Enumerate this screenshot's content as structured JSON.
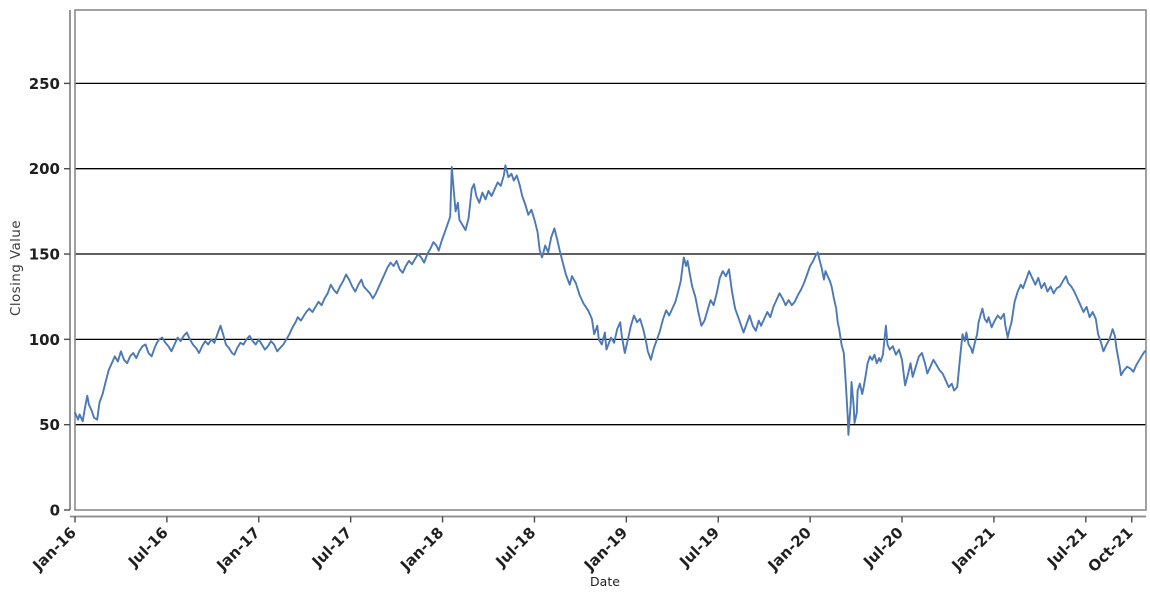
{
  "chart_data": {
    "type": "line",
    "title": "",
    "xlabel": "Date",
    "ylabel": "Closing Value",
    "x_unit": "months since Jan-2016",
    "xlim": [
      0,
      69.93
    ],
    "ylim": [
      0,
      293
    ],
    "grid": "horizontal-only",
    "legend": "none",
    "y_ticks": [
      0,
      50,
      100,
      150,
      200,
      250
    ],
    "x_ticks": [
      {
        "m": 0,
        "label": "Jan-16"
      },
      {
        "m": 6,
        "label": "Jul-16"
      },
      {
        "m": 12,
        "label": "Jan-17"
      },
      {
        "m": 18,
        "label": "Jul-17"
      },
      {
        "m": 24,
        "label": "Jan-18"
      },
      {
        "m": 30,
        "label": "Jul-18"
      },
      {
        "m": 36,
        "label": "Jan-19"
      },
      {
        "m": 42,
        "label": "Jul-19"
      },
      {
        "m": 48,
        "label": "Jan-20"
      },
      {
        "m": 54,
        "label": "Jul-20"
      },
      {
        "m": 60,
        "label": "Jan-21"
      },
      {
        "m": 66,
        "label": "Jul-21"
      },
      {
        "m": 69,
        "label": "Oct-21"
      }
    ],
    "series": [
      {
        "name": "Closing Value",
        "x": [
          0,
          0.2,
          0.3,
          0.5,
          0.65,
          0.8,
          0.9,
          1.1,
          1.25,
          1.45,
          1.6,
          1.8,
          2.0,
          2.2,
          2.4,
          2.6,
          2.8,
          3.0,
          3.2,
          3.4,
          3.6,
          3.8,
          4.0,
          4.2,
          4.4,
          4.6,
          4.8,
          5.0,
          5.2,
          5.35,
          5.5,
          5.7,
          5.9,
          6.1,
          6.3,
          6.5,
          6.7,
          6.9,
          7.1,
          7.3,
          7.5,
          7.7,
          7.9,
          8.1,
          8.3,
          8.5,
          8.7,
          8.9,
          9.1,
          9.3,
          9.5,
          9.7,
          9.85,
          10.05,
          10.25,
          10.4,
          10.6,
          10.8,
          11.0,
          11.2,
          11.4,
          11.6,
          11.8,
          12.0,
          12.2,
          12.4,
          12.6,
          12.8,
          13.0,
          13.2,
          13.4,
          13.6,
          13.8,
          14.0,
          14.2,
          14.4,
          14.55,
          14.75,
          14.95,
          15.1,
          15.3,
          15.5,
          15.7,
          15.9,
          16.1,
          16.3,
          16.5,
          16.7,
          16.9,
          17.1,
          17.3,
          17.5,
          17.7,
          17.9,
          18.1,
          18.3,
          18.5,
          18.7,
          18.85,
          19.05,
          19.25,
          19.45,
          19.65,
          19.8,
          20.0,
          20.2,
          20.4,
          20.6,
          20.8,
          21.0,
          21.2,
          21.4,
          21.6,
          21.8,
          22.0,
          22.2,
          22.4,
          22.6,
          22.8,
          23.0,
          23.2,
          23.4,
          23.6,
          23.75,
          23.95,
          24.15,
          24.35,
          24.5,
          24.6,
          24.75,
          24.85,
          25.0,
          25.1,
          25.3,
          25.5,
          25.7,
          25.9,
          26.05,
          26.2,
          26.4,
          26.6,
          26.8,
          27.0,
          27.2,
          27.4,
          27.6,
          27.8,
          28.0,
          28.1,
          28.3,
          28.5,
          28.65,
          28.85,
          29.05,
          29.2,
          29.4,
          29.6,
          29.8,
          30.0,
          30.2,
          30.35,
          30.5,
          30.7,
          30.9,
          31.1,
          31.3,
          31.5,
          31.65,
          31.85,
          32.05,
          32.3,
          32.45,
          32.7,
          32.95,
          33.2,
          33.5,
          33.75,
          33.9,
          34.1,
          34.2,
          34.4,
          34.6,
          34.7,
          35.0,
          35.2,
          35.4,
          35.6,
          35.7,
          35.9,
          36.1,
          36.3,
          36.5,
          36.7,
          36.9,
          37.1,
          37.3,
          37.4,
          37.6,
          37.8,
          38.0,
          38.2,
          38.4,
          38.6,
          38.8,
          39.0,
          39.2,
          39.35,
          39.55,
          39.75,
          39.9,
          40.0,
          40.15,
          40.3,
          40.5,
          40.7,
          40.9,
          41.1,
          41.3,
          41.5,
          41.7,
          41.9,
          42.1,
          42.3,
          42.5,
          42.7,
          42.9,
          43.1,
          43.3,
          43.5,
          43.65,
          43.85,
          44.05,
          44.25,
          44.45,
          44.65,
          44.8,
          45.0,
          45.2,
          45.4,
          45.6,
          45.8,
          46.0,
          46.2,
          46.4,
          46.6,
          46.8,
          47.0,
          47.2,
          47.4,
          47.6,
          47.8,
          48.0,
          48.2,
          48.35,
          48.5,
          48.6,
          48.75,
          48.9,
          49.0,
          49.15,
          49.3,
          49.4,
          49.55,
          49.7,
          49.8,
          49.9,
          50.05,
          50.2,
          50.3,
          50.45,
          50.5,
          50.65,
          50.7,
          50.85,
          50.9,
          51.05,
          51.1,
          51.25,
          51.4,
          51.5,
          51.65,
          51.75,
          51.9,
          52.05,
          52.2,
          52.35,
          52.5,
          52.6,
          52.75,
          52.95,
          53.05,
          53.2,
          53.4,
          53.6,
          53.8,
          54.0,
          54.2,
          54.4,
          54.55,
          54.7,
          54.9,
          55.1,
          55.3,
          55.5,
          55.65,
          55.85,
          56.05,
          56.25,
          56.45,
          56.65,
          56.85,
          57.05,
          57.25,
          57.4,
          57.6,
          57.8,
          57.95,
          58.1,
          58.2,
          58.35,
          58.5,
          58.6,
          58.75,
          58.9,
          59.0,
          59.15,
          59.25,
          59.4,
          59.55,
          59.65,
          59.85,
          60.05,
          60.25,
          60.45,
          60.65,
          60.75,
          60.9,
          61.0,
          61.15,
          61.35,
          61.55,
          61.75,
          61.9,
          62.1,
          62.3,
          62.5,
          62.7,
          62.9,
          63.1,
          63.3,
          63.5,
          63.7,
          63.9,
          64.1,
          64.3,
          64.5,
          64.7,
          64.85,
          65.05,
          65.25,
          65.45,
          65.65,
          65.85,
          66.05,
          66.25,
          66.45,
          66.65,
          66.8,
          67.0,
          67.15,
          67.35,
          67.55,
          67.75,
          67.9,
          68.0,
          68.2,
          68.3,
          68.5,
          68.7,
          68.9,
          69.1,
          69.3,
          69.5,
          69.7,
          69.85
        ],
        "y": [
          57,
          53,
          56,
          52,
          60,
          67,
          62,
          58,
          54,
          53,
          63,
          68,
          75,
          82,
          86,
          90,
          87,
          93,
          88,
          86,
          90,
          92,
          89,
          93,
          96,
          97,
          92,
          90,
          95,
          98,
          100,
          101,
          98,
          96,
          93,
          97,
          101,
          99,
          102,
          104,
          100,
          97,
          95,
          92,
          96,
          99,
          97,
          100,
          98,
          103,
          108,
          102,
          97,
          95,
          92,
          91,
          95,
          98,
          97,
          100,
          102,
          99,
          97,
          100,
          97,
          94,
          96,
          99,
          97,
          93,
          95,
          97,
          100,
          103,
          107,
          110,
          113,
          111,
          114,
          116,
          118,
          116,
          119,
          122,
          120,
          124,
          127,
          132,
          129,
          127,
          131,
          134,
          138,
          135,
          131,
          128,
          132,
          135,
          131,
          129,
          127,
          124,
          127,
          130,
          134,
          138,
          142,
          145,
          143,
          146,
          141,
          139,
          143,
          146,
          144,
          147,
          150,
          148,
          145,
          150,
          153,
          157,
          155,
          152,
          158,
          163,
          168,
          172,
          201,
          185,
          175,
          180,
          170,
          167,
          164,
          171,
          188,
          191,
          184,
          180,
          186,
          182,
          187,
          184,
          188,
          192,
          190,
          196,
          202,
          195,
          197,
          193,
          196,
          190,
          184,
          179,
          173,
          176,
          170,
          163,
          152,
          148,
          155,
          151,
          160,
          165,
          158,
          152,
          145,
          138,
          132,
          137,
          133,
          126,
          121,
          117,
          112,
          103,
          108,
          100,
          97,
          104,
          94,
          101,
          98,
          106,
          110,
          102,
          92,
          100,
          108,
          114,
          110,
          112,
          106,
          98,
          93,
          88,
          95,
          100,
          105,
          112,
          117,
          114,
          118,
          122,
          127,
          134,
          148,
          143,
          146,
          138,
          131,
          125,
          116,
          108,
          111,
          117,
          123,
          120,
          127,
          136,
          140,
          137,
          141,
          128,
          118,
          113,
          108,
          104,
          109,
          114,
          108,
          105,
          111,
          108,
          112,
          116,
          113,
          119,
          123,
          127,
          124,
          120,
          123,
          120,
          122,
          126,
          129,
          133,
          138,
          143,
          146,
          149,
          151,
          147,
          142,
          135,
          140,
          137,
          134,
          131,
          124,
          118,
          110,
          106,
          97,
          92,
          78,
          55,
          44,
          62,
          75,
          60,
          51,
          57,
          70,
          74,
          68,
          72,
          80,
          86,
          90,
          88,
          91,
          86,
          89,
          87,
          91,
          108,
          97,
          94,
          96,
          91,
          94,
          88,
          73,
          80,
          86,
          78,
          84,
          90,
          92,
          86,
          80,
          84,
          88,
          85,
          82,
          80,
          76,
          72,
          74,
          70,
          72,
          90,
          103,
          99,
          104,
          97,
          95,
          92,
          98,
          103,
          110,
          115,
          118,
          112,
          110,
          113,
          107,
          111,
          114,
          112,
          115,
          108,
          101,
          105,
          110,
          122,
          128,
          132,
          130,
          135,
          140,
          136,
          132,
          136,
          130,
          133,
          128,
          131,
          127,
          130,
          131,
          134,
          137,
          133,
          131,
          128,
          124,
          120,
          116,
          119,
          113,
          116,
          112,
          103,
          98,
          93,
          97,
          100,
          106,
          102,
          95,
          85,
          79,
          82,
          84,
          83,
          81,
          85,
          88,
          91,
          93
        ]
      }
    ]
  },
  "style": {
    "line_color": "#4c79b5",
    "grid_color": "#000000",
    "frame_color": "#8a8a8a",
    "spine_color": "#8a8a8a",
    "tick_color": "#4a4a4a",
    "tick_label_color": "#1f1f1f",
    "axis_label_color": "#3d3d3d",
    "background": "#ffffff"
  }
}
